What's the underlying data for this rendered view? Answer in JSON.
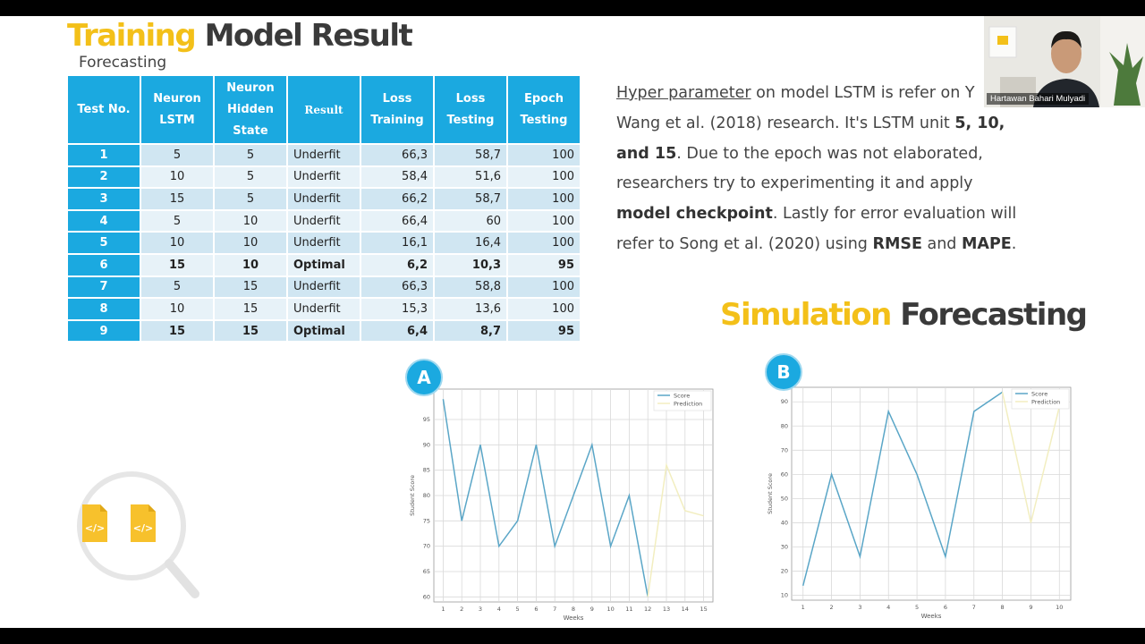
{
  "slide": {
    "title_highlight": "Training",
    "title_rest": "Model Result",
    "subtitle": "Forecasting"
  },
  "table": {
    "headers": [
      "Test No.",
      "Neuron LSTM",
      "Neuron Hidden State",
      "Result",
      "Loss Training",
      "Loss Testing",
      "Epoch Testing"
    ],
    "rows": [
      [
        "1",
        "5",
        "5",
        "Underfit",
        "66,3",
        "58,7",
        "100"
      ],
      [
        "2",
        "10",
        "5",
        "Underfit",
        "58,4",
        "51,6",
        "100"
      ],
      [
        "3",
        "15",
        "5",
        "Underfit",
        "66,2",
        "58,7",
        "100"
      ],
      [
        "4",
        "5",
        "10",
        "Underfit",
        "66,4",
        "60",
        "100"
      ],
      [
        "5",
        "10",
        "10",
        "Underfit",
        "16,1",
        "16,4",
        "100"
      ],
      [
        "6",
        "15",
        "10",
        "Optimal",
        "6,2",
        "10,3",
        "95"
      ],
      [
        "7",
        "5",
        "15",
        "Underfit",
        "66,3",
        "58,8",
        "100"
      ],
      [
        "8",
        "10",
        "15",
        "Underfit",
        "15,3",
        "13,6",
        "100"
      ],
      [
        "9",
        "15",
        "15",
        "Optimal",
        "6,4",
        "8,7",
        "95"
      ]
    ]
  },
  "paragraph": {
    "p1_link": "Hyper parameter",
    "p1_a": " on model LSTM is refer on Y",
    "p2": "Wang et al. (2018) research. It's LSTM unit ",
    "p2_bold": "5, 10,",
    "p3_bold": "and 15",
    "p3": ". Due to the epoch was not elaborated,",
    "p4": "researchers try to experimenting it and apply",
    "p5_bold": "model checkpoint",
    "p5": ". Lastly for error evaluation will",
    "p6": "refer to Song et al. (2020) using ",
    "p6_bold1": "RMSE",
    "p6_and": " and ",
    "p6_bold2": "MAPE",
    "p6_end": "."
  },
  "simulation": {
    "title_highlight": "Simulation",
    "title_rest": "Forecasting",
    "badge_a": "A",
    "badge_b": "B"
  },
  "webcam": {
    "name": "Hartawan Bahari Mulyadi"
  },
  "colors": {
    "accent_yellow": "#f3c019",
    "table_blue": "#1ba9e0",
    "score_line": "#5aa6c7",
    "prediction_line": "#f2eec0"
  },
  "icons": [
    "code-file-icon",
    "code-file-icon",
    "magnifier-icon"
  ],
  "chart_data": [
    {
      "type": "line",
      "xlabel": "Weeks",
      "ylabel": "Student Score",
      "xlim": [
        0.5,
        15.5
      ],
      "ylim": [
        59,
        101
      ],
      "x_ticks": [
        1,
        2,
        3,
        4,
        5,
        6,
        7,
        8,
        9,
        10,
        11,
        12,
        13,
        14,
        15
      ],
      "y_ticks": [
        60,
        65,
        70,
        75,
        80,
        85,
        90,
        95
      ],
      "legend": "top-right",
      "grid": true,
      "series": [
        {
          "name": "Score",
          "x": [
            1,
            2,
            3,
            4,
            5,
            6,
            7,
            8,
            9,
            10,
            11,
            12
          ],
          "values": [
            99,
            75,
            90,
            70,
            75,
            90,
            70,
            80,
            90,
            70,
            80,
            60
          ]
        },
        {
          "name": "Prediction",
          "x": [
            12,
            13,
            14,
            15
          ],
          "values": [
            60,
            86,
            77,
            76
          ]
        }
      ]
    },
    {
      "type": "line",
      "xlabel": "Weeks",
      "ylabel": "Student Score",
      "xlim": [
        0.6,
        10.4
      ],
      "ylim": [
        8,
        96
      ],
      "x_ticks": [
        1,
        2,
        3,
        4,
        5,
        6,
        7,
        8,
        9,
        10
      ],
      "y_ticks": [
        10,
        20,
        30,
        40,
        50,
        60,
        70,
        80,
        90
      ],
      "legend": "top-right",
      "grid": true,
      "series": [
        {
          "name": "Score",
          "x": [
            1,
            2,
            3,
            4,
            5,
            6,
            7,
            8
          ],
          "values": [
            14,
            60,
            26,
            86,
            60,
            26,
            86,
            94
          ]
        },
        {
          "name": "Prediction",
          "x": [
            8,
            9,
            10
          ],
          "values": [
            94,
            40,
            88
          ]
        }
      ]
    }
  ]
}
